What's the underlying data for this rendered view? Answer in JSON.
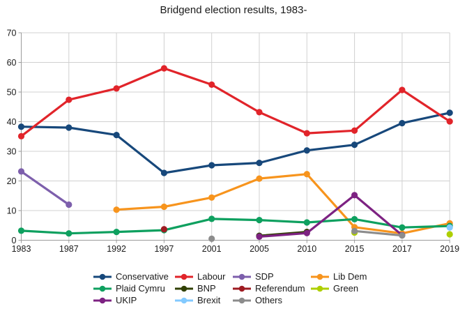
{
  "chart_data": {
    "type": "line",
    "title": "Bridgend election results, 1983-",
    "xlabel": "",
    "ylabel": "",
    "categories": [
      "1983",
      "1987",
      "1992",
      "1997",
      "2001",
      "2005",
      "2010",
      "2015",
      "2017",
      "2019"
    ],
    "yticks": [
      0,
      10,
      20,
      30,
      40,
      50,
      60,
      70
    ],
    "ylim": [
      0,
      70
    ],
    "grid": true,
    "legend_position": "bottom",
    "marker": "circle",
    "series": [
      {
        "name": "Conservative",
        "color": "#17487B",
        "values": [
          38.3,
          38.0,
          35.5,
          22.7,
          25.3,
          26.1,
          30.3,
          32.2,
          39.5,
          43.0
        ]
      },
      {
        "name": "Labour",
        "color": "#E1242A",
        "values": [
          35.1,
          47.4,
          51.2,
          58.0,
          52.5,
          43.2,
          36.1,
          37.0,
          50.7,
          40.1
        ]
      },
      {
        "name": "SDP",
        "color": "#7D5FAC",
        "values": [
          23.2,
          12.0,
          null,
          null,
          null,
          null,
          null,
          null,
          null,
          null
        ]
      },
      {
        "name": "Lib Dem",
        "color": "#F7941D",
        "values": [
          null,
          null,
          10.3,
          11.3,
          14.4,
          20.8,
          22.3,
          4.4,
          2.3,
          5.7
        ]
      },
      {
        "name": "Plaid Cymru",
        "color": "#0EA05F",
        "values": [
          3.2,
          2.3,
          2.8,
          3.4,
          7.2,
          6.8,
          6.0,
          7.1,
          4.3,
          4.8
        ]
      },
      {
        "name": "BNP",
        "color": "#314004",
        "values": [
          null,
          null,
          null,
          null,
          null,
          1.5,
          2.8,
          null,
          null,
          null
        ]
      },
      {
        "name": "Referendum",
        "color": "#9E1B22",
        "values": [
          null,
          null,
          null,
          3.7,
          null,
          null,
          null,
          null,
          null,
          null
        ]
      },
      {
        "name": "Green",
        "color": "#AECF00",
        "values": [
          null,
          null,
          null,
          null,
          null,
          null,
          null,
          2.6,
          null,
          2.0
        ]
      },
      {
        "name": "UKIP",
        "color": "#7D2282",
        "values": [
          null,
          null,
          null,
          null,
          null,
          1.2,
          2.4,
          15.2,
          1.7,
          null
        ]
      },
      {
        "name": "Brexit",
        "color": "#83CAFF",
        "values": [
          null,
          null,
          null,
          null,
          null,
          null,
          null,
          null,
          null,
          4.3
        ]
      },
      {
        "name": "Others",
        "color": "#8C8C8C",
        "values": [
          null,
          null,
          null,
          null,
          0.5,
          null,
          null,
          3.1,
          1.6,
          null
        ]
      }
    ]
  },
  "colors": {
    "background": "#ffffff",
    "gridline": "#d0d0d0",
    "axis": "#9b9b9b",
    "text": "#1a1a1a"
  }
}
